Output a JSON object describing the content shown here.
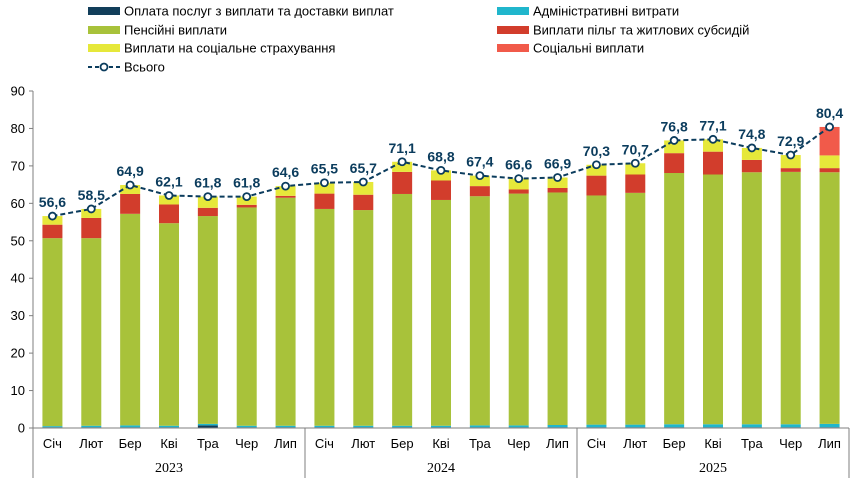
{
  "chart_data": {
    "type": "bar",
    "stacked": true,
    "title": "",
    "xlabel": "",
    "ylabel": "",
    "ylim": [
      0,
      90
    ],
    "yticks": [
      0,
      10,
      20,
      30,
      40,
      50,
      60,
      70,
      80,
      90
    ],
    "grid": false,
    "legend_position": "top",
    "categories": [
      "Січ",
      "Лют",
      "Бер",
      "Кві",
      "Тра",
      "Чер",
      "Лип",
      "Січ",
      "Лют",
      "Бер",
      "Кві",
      "Тра",
      "Чер",
      "Лип",
      "Січ",
      "Лют",
      "Бер",
      "Кві",
      "Тра",
      "Чер",
      "Лип"
    ],
    "year_groups": [
      {
        "label": "2023",
        "count": 7
      },
      {
        "label": "2024",
        "count": 7
      },
      {
        "label": "2025",
        "count": 7
      }
    ],
    "series": [
      {
        "name": "Оплата послуг з виплати та доставки виплат",
        "color": "#123e5a",
        "values": [
          0.2,
          0.2,
          0.2,
          0.2,
          0.7,
          0.2,
          0.2,
          0.2,
          0.2,
          0.2,
          0.2,
          0.2,
          0.2,
          0.2,
          0.2,
          0.2,
          0.2,
          0.2,
          0.2,
          0.2,
          0.2
        ]
      },
      {
        "name": "Адміністративні витрати",
        "color": "#20b6cc",
        "values": [
          0.3,
          0.4,
          0.5,
          0.4,
          0.4,
          0.4,
          0.4,
          0.4,
          0.4,
          0.4,
          0.4,
          0.5,
          0.5,
          0.6,
          0.7,
          0.7,
          0.8,
          0.8,
          0.8,
          0.8,
          0.9
        ]
      },
      {
        "name": "Пенсійні виплати",
        "color": "#a8c23a",
        "values": [
          50.2,
          50.1,
          56.5,
          54.1,
          55.5,
          58.3,
          60.9,
          57.9,
          57.6,
          61.9,
          60.3,
          61.2,
          61.9,
          62.1,
          61.2,
          61.9,
          67.1,
          66.7,
          67.3,
          67.4,
          67.2
        ]
      },
      {
        "name": "Виплати пільг та житлових субсидій",
        "color": "#d23d2c",
        "values": [
          3.6,
          5.4,
          5.3,
          5.0,
          2.2,
          0.7,
          0.5,
          4.1,
          4.1,
          5.9,
          5.2,
          2.7,
          1.1,
          1.2,
          5.3,
          4.9,
          5.3,
          6.1,
          3.3,
          1.0,
          1.1
        ]
      },
      {
        "name": "Виплати на соціальне страхування",
        "color": "#e6e83a",
        "values": [
          2.3,
          2.4,
          2.4,
          2.4,
          3.0,
          2.2,
          2.6,
          2.9,
          3.4,
          2.7,
          2.7,
          2.8,
          2.9,
          2.8,
          2.9,
          3.0,
          3.4,
          3.3,
          3.2,
          3.5,
          3.4
        ]
      },
      {
        "name": "Соціальні виплати",
        "color": "#f15a4a",
        "values": [
          0,
          0,
          0,
          0,
          0,
          0,
          0,
          0,
          0,
          0,
          0,
          0,
          0,
          0,
          0,
          0,
          0,
          0,
          0,
          0,
          7.6
        ]
      }
    ],
    "total": {
      "name": "Всього",
      "color": "#0b3c5d",
      "values": [
        56.6,
        58.5,
        64.9,
        62.1,
        61.8,
        61.8,
        64.6,
        65.5,
        65.7,
        71.1,
        68.8,
        67.4,
        66.6,
        66.9,
        70.3,
        70.7,
        76.8,
        77.1,
        74.8,
        72.9,
        80.4
      ],
      "labels": [
        "56,6",
        "58,5",
        "64,9",
        "62,1",
        "61,8",
        "61,8",
        "64,6",
        "65,5",
        "65,7",
        "71,1",
        "68,8",
        "67,4",
        "66,6",
        "66,9",
        "70,3",
        "70,7",
        "76,8",
        "77,1",
        "74,8",
        "72,9",
        "80,4"
      ]
    },
    "legend_order": [
      0,
      1,
      2,
      3,
      4,
      5,
      "total"
    ]
  }
}
